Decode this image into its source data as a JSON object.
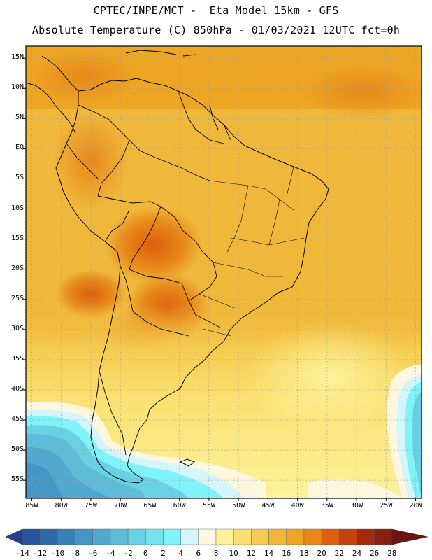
{
  "title": {
    "line1": "CPTEC/INPE/MCT -  Eta Model 15km - GFS",
    "line2": "Absolute Temperature (C) 850hPa - 01/03/2021 12UTC fct=0h"
  },
  "map": {
    "lat_labels": [
      "15N",
      "10N",
      "5N",
      "EQ",
      "5S",
      "10S",
      "15S",
      "20S",
      "25S",
      "30S",
      "35S",
      "40S",
      "45S",
      "50S",
      "55S"
    ],
    "lat_values": [
      15,
      10,
      5,
      0,
      -5,
      -10,
      -15,
      -20,
      -25,
      -30,
      -35,
      -40,
      -45,
      -50,
      -55
    ],
    "lon_labels": [
      "85W",
      "80W",
      "75W",
      "70W",
      "65W",
      "60W",
      "55W",
      "50W",
      "45W",
      "40W",
      "35W",
      "30W",
      "25W",
      "20W"
    ],
    "lon_values": [
      -85,
      -80,
      -75,
      -70,
      -65,
      -60,
      -55,
      -50,
      -45,
      -40,
      -35,
      -30,
      -25,
      -20
    ],
    "lat_range": [
      -58,
      17
    ],
    "lon_range": [
      -86,
      -19
    ],
    "grid": "dotted"
  },
  "colorbar": {
    "labels": [
      "-14",
      "-12",
      "-10",
      "-8",
      "-6",
      "-4",
      "-2",
      "0",
      "2",
      "4",
      "6",
      "8",
      "10",
      "12",
      "14",
      "16",
      "18",
      "20",
      "22",
      "24",
      "26",
      "28"
    ],
    "colors": [
      "#1f3f8f",
      "#26549e",
      "#2e6aab",
      "#3a80b8",
      "#4596c4",
      "#51a9cf",
      "#5ebcd8",
      "#6ad0e3",
      "#74e2ee",
      "#7ff3f8",
      "#d4f6fa",
      "#fdf7e0",
      "#fcf29a",
      "#fae072",
      "#f5cc52",
      "#f0b83a",
      "#eda623",
      "#e7881a",
      "#dc5f0f",
      "#c2430d",
      "#a52a0d",
      "#862012",
      "#6b1512"
    ]
  },
  "chart_data": {
    "type": "heatmap",
    "variable": "Absolute Temperature (C) 850hPa",
    "levels": [
      -14,
      -12,
      -10,
      -8,
      -6,
      -4,
      -2,
      0,
      2,
      4,
      6,
      8,
      10,
      12,
      14,
      16,
      18,
      20,
      22,
      24,
      26,
      28
    ]
  }
}
